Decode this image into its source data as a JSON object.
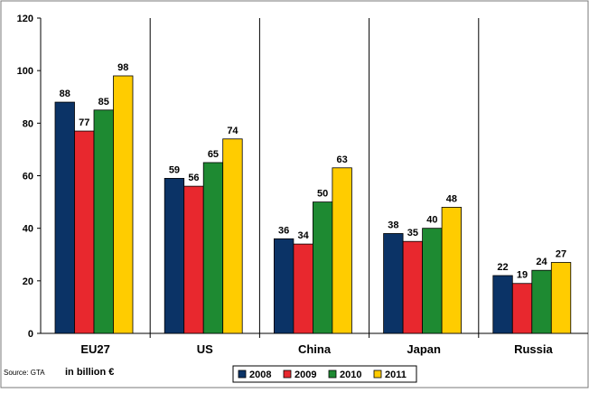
{
  "chart_data": {
    "type": "bar",
    "categories": [
      "EU27",
      "US",
      "China",
      "Japan",
      "Russia"
    ],
    "series": [
      {
        "name": "2008",
        "color": "#0B3366",
        "values": [
          88,
          59,
          36,
          38,
          22
        ]
      },
      {
        "name": "2009",
        "color": "#E8282E",
        "values": [
          77,
          56,
          34,
          35,
          19
        ]
      },
      {
        "name": "2010",
        "color": "#1E8A32",
        "values": [
          85,
          65,
          50,
          40,
          24
        ]
      },
      {
        "name": "2011",
        "color": "#FFCC00",
        "values": [
          98,
          74,
          63,
          48,
          27
        ]
      }
    ],
    "ylim": [
      0,
      120
    ],
    "yticks": [
      0,
      20,
      40,
      60,
      80,
      100,
      120
    ],
    "grid": "vertical separators between categories",
    "legend_position": "bottom-center",
    "source": "Source: GTA",
    "unit_label": "in billion €"
  }
}
